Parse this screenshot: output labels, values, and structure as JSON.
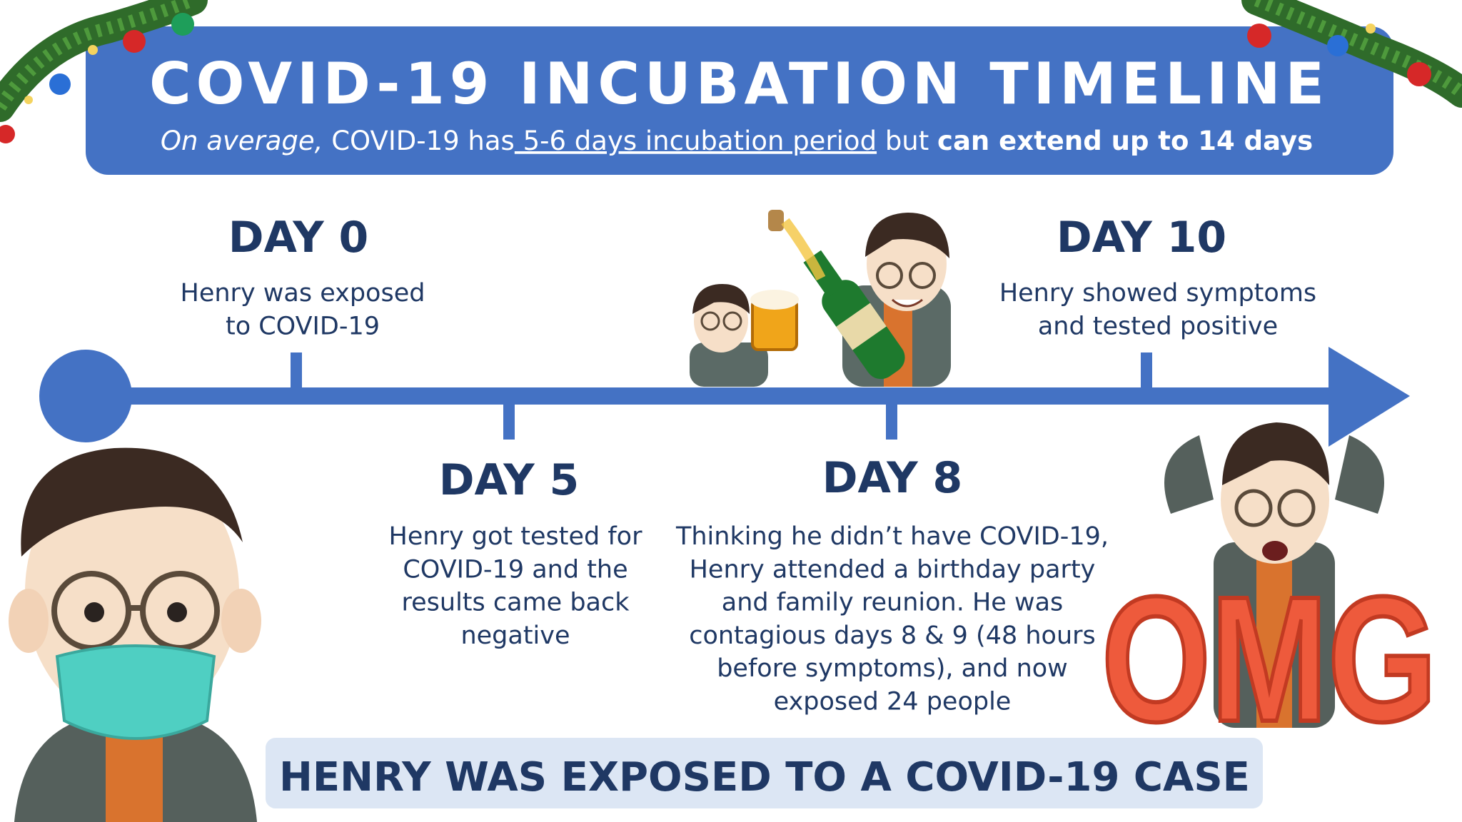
{
  "header": {
    "title": "COVID-19 INCUBATION TIMELINE",
    "subtitle": {
      "lead": "On average,",
      "middle": " COVID-19 has",
      "period": " 5-6 days incubation period",
      "but": " but ",
      "extend": "can extend up to 14 days"
    }
  },
  "events": [
    {
      "day": "DAY 0",
      "lines": [
        "Henry was exposed",
        "to COVID-19"
      ]
    },
    {
      "day": "DAY 5",
      "lines": [
        "Henry got tested for",
        "COVID-19 and the",
        "results came back",
        "negative"
      ]
    },
    {
      "day": "DAY 8",
      "lines": [
        "Thinking he didn’t have COVID-19,",
        "Henry attended a birthday party",
        "and family reunion. He was",
        "contagious days 8 & 9 (48 hours",
        "before symptoms), and now",
        "exposed 24 people"
      ]
    },
    {
      "day": "DAY 10",
      "lines": [
        "Henry showed symptoms",
        "and tested positive"
      ]
    }
  ],
  "sticker": "OMG",
  "footer": "HENRY WAS EXPOSED TO A COVID-19 CASE"
}
